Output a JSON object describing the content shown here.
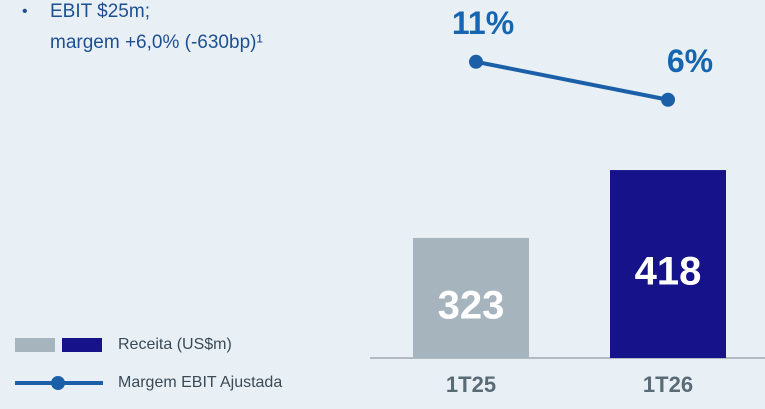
{
  "chart_data": {
    "type": "bar",
    "annotations": [
      "EBIT $25m;",
      "margem +6,0% (-630bp)¹"
    ],
    "categories": [
      "1T25",
      "1T26"
    ],
    "series": [
      {
        "name": "Receita (US$m)",
        "type": "bar",
        "colors": [
          "#a6b4be",
          "#15128a"
        ],
        "values": [
          323,
          418
        ]
      },
      {
        "name": "Margem EBIT Ajustada",
        "type": "line",
        "axis": "y2",
        "color": "#1a5fa8",
        "values": [
          11,
          6
        ],
        "value_labels": [
          "11%",
          "6%"
        ]
      }
    ],
    "ylim": [
      155,
      628
    ],
    "y2lim": [
      -28,
      16.5
    ]
  }
}
